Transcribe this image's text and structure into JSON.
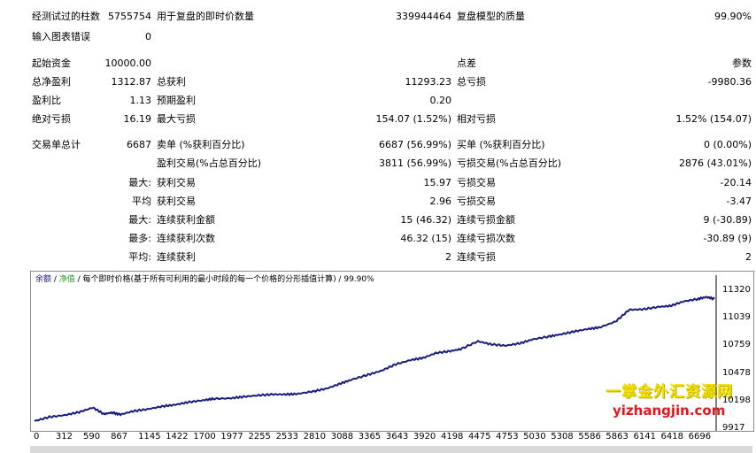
{
  "stats": [
    {
      "label": "经测试过的柱数",
      "value": "5755754",
      "label2": "用于复盘的即时价数量",
      "value2": "339944464",
      "label3": "复盘模型的质量",
      "value3": "99.90%"
    },
    {
      "label": "输入图表错误",
      "value": "0",
      "label2": "",
      "value2": "",
      "label3": "",
      "value3": ""
    },
    {
      "label": "起始资金",
      "value": "10000.00",
      "label2": "",
      "value2": "",
      "label3": "点差",
      "value3": "参数"
    },
    {
      "label": "总净盈利",
      "value": "1312.87",
      "label2": "总获利",
      "value2": "11293.23",
      "label3": "总亏损",
      "value3": "-9980.36"
    },
    {
      "label": "盈利比",
      "value": "1.13",
      "label2": "预期盈利",
      "value2": "0.20",
      "label3": "",
      "value3": ""
    },
    {
      "label": "绝对亏损",
      "value": "16.19",
      "label2": "最大亏损",
      "value2": "154.07 (1.52%)",
      "label3": "相对亏损",
      "value3": "1.52% (154.07)"
    },
    {
      "label": "交易单总计",
      "value": "6687",
      "label2": "卖单 (%获利百分比)",
      "value2": "6687 (56.99%)",
      "label3": "买单 (%获利百分比)",
      "value3": "0 (0.00%)"
    },
    {
      "label": "",
      "value": "",
      "label2": "盈利交易(%占总百分比)",
      "value2": "3811 (56.99%)",
      "label3": "亏损交易(%占总百分比)",
      "value3": "2876 (43.01%)"
    },
    {
      "label": "",
      "value": "最大:",
      "label2": "获利交易",
      "value2": "15.97",
      "label3": "亏损交易",
      "value3": "-20.14"
    },
    {
      "label": "",
      "value": "平均",
      "label2": "获利交易",
      "value2": "2.96",
      "label3": "亏损交易",
      "value3": "-3.47"
    },
    {
      "label": "",
      "value": "最大:",
      "label2": "连续获利金额",
      "value2": "15 (46.32)",
      "label3": "连续亏损金额",
      "value3": "9 (-30.89)"
    },
    {
      "label": "",
      "value": "最多:",
      "label2": "连续获利次数",
      "value2": "46.32 (15)",
      "label3": "连续亏损次数",
      "value3": "-30.89 (9)"
    },
    {
      "label": "",
      "value": "平均:",
      "label2": "连续获利",
      "value2": "2",
      "label3": "连续亏损",
      "value3": "2"
    }
  ],
  "chart_header": {
    "balance": "余额",
    "sep1": " / ",
    "equity": "净值",
    "sep2": " / 每个即时价格(基于所有可利用的最小时段的每一个价格的分形插值计算) / ",
    "quality": "99.90%"
  },
  "watermark": {
    "line1": "一掌金外汇资源网",
    "line2": "yizhangjin.com"
  },
  "chart_data": {
    "type": "line",
    "x_ticks": [
      0,
      312,
      590,
      867,
      1145,
      1422,
      1700,
      1977,
      2255,
      2533,
      2810,
      3088,
      3365,
      3643,
      3920,
      4198,
      4475,
      4753,
      5030,
      5308,
      5586,
      5863,
      6141,
      6418,
      6696
    ],
    "y_ticks": [
      11320,
      11039,
      10759,
      10478,
      10198,
      9917
    ],
    "ylim": [
      9917,
      11320
    ],
    "xlim": [
      0,
      6860
    ],
    "colors": {
      "balance": "#1b1b80",
      "equity": "#2a9a2a",
      "axis": "#000000"
    },
    "series": [
      {
        "name": "余额",
        "x": [
          0,
          150,
          312,
          450,
          590,
          700,
          780,
          867,
          1000,
          1145,
          1300,
          1422,
          1550,
          1700,
          1800,
          1977,
          2100,
          2255,
          2400,
          2533,
          2650,
          2810,
          2950,
          3088,
          3200,
          3365,
          3500,
          3643,
          3800,
          3920,
          4050,
          4198,
          4300,
          4475,
          4600,
          4753,
          4900,
          5030,
          5200,
          5308,
          5450,
          5586,
          5700,
          5863,
          6000,
          6141,
          6300,
          6418,
          6550,
          6696,
          6780,
          6860
        ],
        "values": [
          9999,
          10040,
          10060,
          10090,
          10135,
          10070,
          10085,
          10065,
          10100,
          10120,
          10150,
          10165,
          10190,
          10210,
          10225,
          10230,
          10245,
          10260,
          10270,
          10270,
          10275,
          10300,
          10330,
          10380,
          10420,
          10470,
          10510,
          10575,
          10620,
          10640,
          10690,
          10710,
          10730,
          10810,
          10780,
          10765,
          10790,
          10830,
          10860,
          10880,
          10910,
          10935,
          10950,
          11010,
          11130,
          11135,
          11160,
          11170,
          11215,
          11240,
          11260,
          11240
        ]
      }
    ]
  }
}
